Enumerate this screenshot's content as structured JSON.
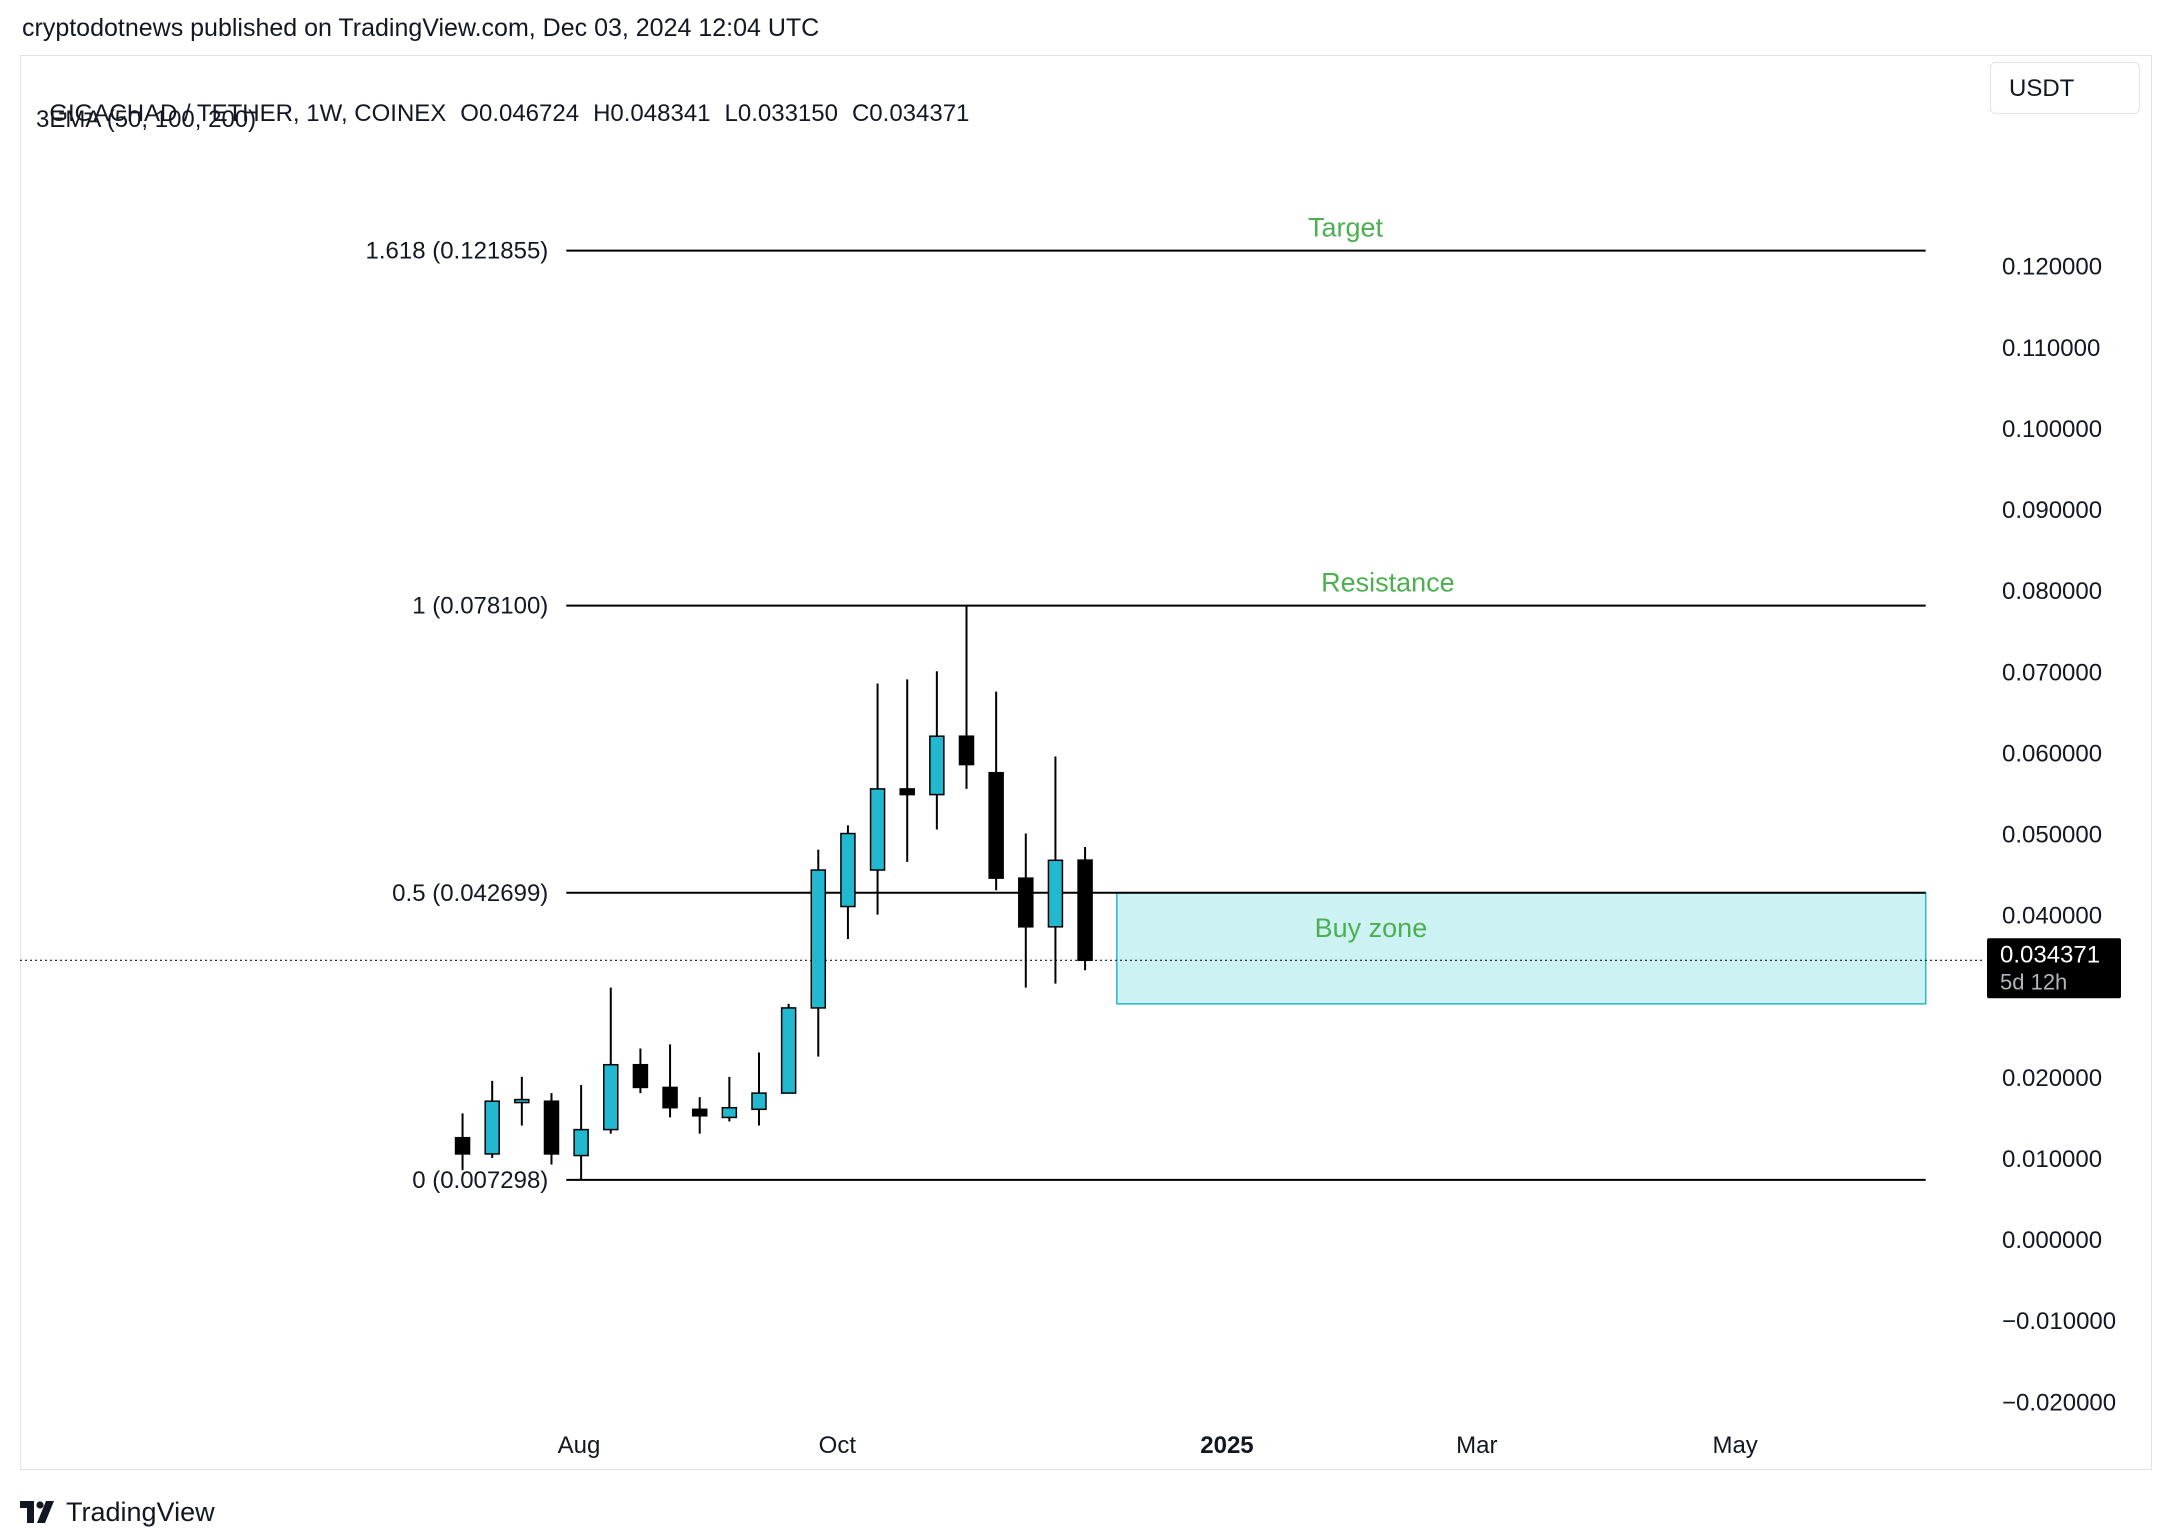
{
  "publisher_line": "cryptodotnews published on TradingView.com, Dec 03, 2024 12:04 UTC",
  "symbol": {
    "name": "GIGACHAD / TETHER, 1W, COINEX",
    "open": "O0.046724",
    "high": "H0.048341",
    "low": "L0.033150",
    "close": "C0.034371"
  },
  "indicator": "3EMA (50, 100, 200)",
  "currency": "USDT",
  "footer": {
    "brand": "TradingView",
    "logo_icon": "tradingview-logo-icon"
  },
  "colors": {
    "bull": "#22b8cf",
    "bear": "#000000",
    "annotation_text": "#4caf50",
    "buy_zone_fill": "#cdf2f4",
    "buy_zone_border": "#22b8cf",
    "fib_line": "#000000"
  },
  "chart_data": {
    "type": "candlestick",
    "timeframe": "1W",
    "x_ticks": [
      {
        "label": "Aug",
        "date": "2024-08-01",
        "bold": false
      },
      {
        "label": "Oct",
        "date": "2024-10-01",
        "bold": false
      },
      {
        "label": "2025",
        "date": "2025-01-01",
        "bold": true
      },
      {
        "label": "Mar",
        "date": "2025-03-01",
        "bold": false
      },
      {
        "label": "May",
        "date": "2025-05-01",
        "bold": false
      }
    ],
    "x_range": [
      "2024-03-22",
      "2025-06-29"
    ],
    "y_range": [
      -0.026,
      0.1355
    ],
    "y_ticks": [
      {
        "value": 0.12,
        "label": "0.120000"
      },
      {
        "value": 0.11,
        "label": "0.110000"
      },
      {
        "value": 0.1,
        "label": "0.100000"
      },
      {
        "value": 0.09,
        "label": "0.090000"
      },
      {
        "value": 0.08,
        "label": "0.080000"
      },
      {
        "value": 0.07,
        "label": "0.070000"
      },
      {
        "value": 0.06,
        "label": "0.060000"
      },
      {
        "value": 0.05,
        "label": "0.050000"
      },
      {
        "value": 0.04,
        "label": "0.040000"
      },
      {
        "value": 0.02,
        "label": "0.020000"
      },
      {
        "value": 0.01,
        "label": "0.010000"
      },
      {
        "value": 0.0,
        "label": "0.000000"
      },
      {
        "value": -0.01,
        "label": "−0.010000"
      },
      {
        "value": -0.02,
        "label": "−0.020000"
      }
    ],
    "candles": [
      {
        "date": "2024-07-01",
        "o": 0.0125,
        "h": 0.0155,
        "l": 0.0085,
        "c": 0.0105
      },
      {
        "date": "2024-07-08",
        "o": 0.0105,
        "h": 0.0195,
        "l": 0.01,
        "c": 0.017
      },
      {
        "date": "2024-07-15",
        "o": 0.017,
        "h": 0.02,
        "l": 0.014,
        "c": 0.0172
      },
      {
        "date": "2024-07-22",
        "o": 0.017,
        "h": 0.018,
        "l": 0.0092,
        "c": 0.0105
      },
      {
        "date": "2024-07-29",
        "o": 0.0103,
        "h": 0.019,
        "l": 0.0073,
        "c": 0.0135
      },
      {
        "date": "2024-08-05",
        "o": 0.0135,
        "h": 0.031,
        "l": 0.013,
        "c": 0.0215
      },
      {
        "date": "2024-08-12",
        "o": 0.0215,
        "h": 0.0235,
        "l": 0.018,
        "c": 0.0187
      },
      {
        "date": "2024-08-19",
        "o": 0.0187,
        "h": 0.024,
        "l": 0.015,
        "c": 0.0162
      },
      {
        "date": "2024-08-26",
        "o": 0.016,
        "h": 0.0175,
        "l": 0.013,
        "c": 0.0152
      },
      {
        "date": "2024-09-02",
        "o": 0.015,
        "h": 0.02,
        "l": 0.0145,
        "c": 0.0162
      },
      {
        "date": "2024-09-09",
        "o": 0.016,
        "h": 0.023,
        "l": 0.014,
        "c": 0.018
      },
      {
        "date": "2024-09-16",
        "o": 0.018,
        "h": 0.029,
        "l": 0.018,
        "c": 0.0285
      },
      {
        "date": "2024-09-23",
        "o": 0.0285,
        "h": 0.048,
        "l": 0.0225,
        "c": 0.0455
      },
      {
        "date": "2024-09-30",
        "o": 0.041,
        "h": 0.051,
        "l": 0.037,
        "c": 0.05
      },
      {
        "date": "2024-10-07",
        "o": 0.0455,
        "h": 0.0685,
        "l": 0.04,
        "c": 0.0555
      },
      {
        "date": "2024-10-14",
        "o": 0.0555,
        "h": 0.069,
        "l": 0.0465,
        "c": 0.0548
      },
      {
        "date": "2024-10-21",
        "o": 0.0548,
        "h": 0.07,
        "l": 0.0505,
        "c": 0.062
      },
      {
        "date": "2024-10-28",
        "o": 0.062,
        "h": 0.0781,
        "l": 0.0555,
        "c": 0.0585
      },
      {
        "date": "2024-11-04",
        "o": 0.0575,
        "h": 0.0675,
        "l": 0.043,
        "c": 0.0445
      },
      {
        "date": "2024-11-11",
        "o": 0.0445,
        "h": 0.05,
        "l": 0.031,
        "c": 0.0385
      },
      {
        "date": "2024-11-18",
        "o": 0.0385,
        "h": 0.0595,
        "l": 0.0315,
        "c": 0.0467
      },
      {
        "date": "2024-11-25",
        "o": 0.046724,
        "h": 0.048341,
        "l": 0.03315,
        "c": 0.034371
      }
    ],
    "fib_levels": [
      {
        "label": "1.618 (0.121855)",
        "value": 0.121855
      },
      {
        "label": "1 (0.078100)",
        "value": 0.0781
      },
      {
        "label": "0.5 (0.042699)",
        "value": 0.042699
      },
      {
        "label": "0 (0.007298)",
        "value": 0.007298
      }
    ],
    "fib_start_date": "2024-07-29",
    "fib_end_date": "2025-06-15",
    "annotations": [
      {
        "text": "Target",
        "value": 0.121855,
        "date": "2025-01-29"
      },
      {
        "text": "Resistance",
        "value": 0.0781,
        "date": "2025-02-08"
      },
      {
        "text": "Buy zone",
        "value": 0.0355,
        "date": "2025-02-04"
      }
    ],
    "buy_zone": {
      "top": 0.0427,
      "bottom": 0.029,
      "start_date": "2024-12-06",
      "end_date": "2025-06-15"
    },
    "last_price": {
      "value": 0.034371,
      "label": "0.034371",
      "countdown": "5d 12h"
    }
  }
}
